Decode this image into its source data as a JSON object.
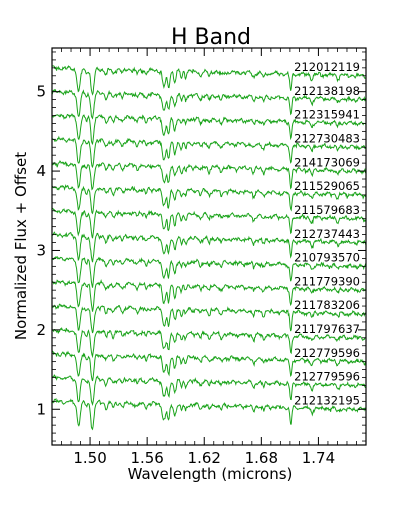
{
  "chart_data": {
    "type": "line",
    "title": "H Band",
    "xlabel": "Wavelength (microns)",
    "ylabel": "Normalized Flux + Offset",
    "xlim": [
      1.46,
      1.79
    ],
    "ylim": [
      0.55,
      5.55
    ],
    "xticks": [
      1.5,
      1.56,
      1.62,
      1.68,
      1.74
    ],
    "xtick_labels": [
      "1.50",
      "1.56",
      "1.62",
      "1.68",
      "1.74"
    ],
    "yticks": [
      1,
      2,
      3,
      4,
      5
    ],
    "ytick_labels": [
      "1",
      "2",
      "3",
      "4",
      "5"
    ],
    "grid": false,
    "series_color": "#1aa31a",
    "offsets": [
      1.0,
      1.3,
      1.6,
      1.9,
      2.2,
      2.5,
      2.8,
      3.1,
      3.4,
      3.7,
      4.0,
      4.3,
      4.6,
      4.9,
      5.2
    ],
    "series": [
      {
        "name": "212132195"
      },
      {
        "name": "212779596"
      },
      {
        "name": "212779596"
      },
      {
        "name": "211797637"
      },
      {
        "name": "211783206"
      },
      {
        "name": "211779390"
      },
      {
        "name": "210793570"
      },
      {
        "name": "212737443"
      },
      {
        "name": "211579683"
      },
      {
        "name": "211529065"
      },
      {
        "name": "214173069"
      },
      {
        "name": "212730483"
      },
      {
        "name": "212315941"
      },
      {
        "name": "212138198"
      },
      {
        "name": "212012119"
      }
    ]
  }
}
